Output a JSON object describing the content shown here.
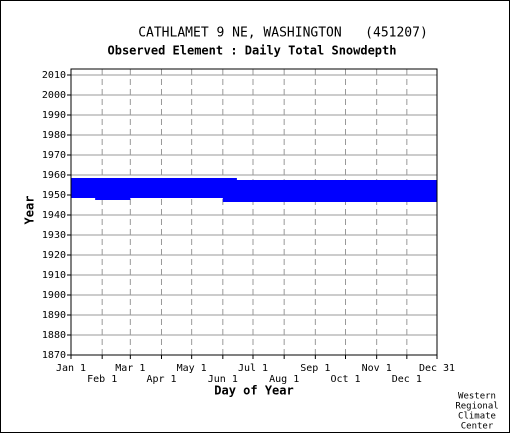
{
  "chart_data": {
    "type": "range",
    "title": "CATHLAMET 9 NE, WASHINGTON   (451207)",
    "subtitle": "Observed Element : Daily Total Snowdepth",
    "xlabel": "Day of Year",
    "ylabel": "Year",
    "credit": [
      "Western",
      "Regional",
      "Climate",
      "Center"
    ],
    "color": "#0000ff",
    "grid": true,
    "xlim": [
      1,
      365
    ],
    "ylim": [
      1870,
      2013
    ],
    "yticks": [
      1870,
      1880,
      1890,
      1900,
      1910,
      1920,
      1930,
      1940,
      1950,
      1960,
      1970,
      1980,
      1990,
      2000,
      2010
    ],
    "xticks": [
      {
        "value": 1,
        "label": "Jan 1"
      },
      {
        "value": 32,
        "label": "Feb 1"
      },
      {
        "value": 60,
        "label": "Mar 1"
      },
      {
        "value": 91,
        "label": "Apr 1"
      },
      {
        "value": 121,
        "label": "May 1"
      },
      {
        "value": 152,
        "label": "Jun 1"
      },
      {
        "value": 182,
        "label": "Jul 1"
      },
      {
        "value": 213,
        "label": "Aug 1"
      },
      {
        "value": 244,
        "label": "Sep 1"
      },
      {
        "value": 274,
        "label": "Oct 1"
      },
      {
        "value": 305,
        "label": "Nov 1"
      },
      {
        "value": 335,
        "label": "Dec 1"
      },
      {
        "value": 365,
        "label": "Dec 31"
      }
    ],
    "rows": [
      {
        "year": 1958,
        "start": 1,
        "end": 166
      },
      {
        "year": 1957,
        "start": 1,
        "end": 365
      },
      {
        "year": 1956,
        "start": 1,
        "end": 365
      },
      {
        "year": 1955,
        "start": 1,
        "end": 365
      },
      {
        "year": 1954,
        "start": 1,
        "end": 365
      },
      {
        "year": 1953,
        "start": 1,
        "end": 365
      },
      {
        "year": 1952,
        "start": 1,
        "end": 365
      },
      {
        "year": 1951,
        "start": 1,
        "end": 365
      },
      {
        "year": 1950,
        "start": 1,
        "end": 365
      },
      {
        "year": 1949,
        "start": 1,
        "end": 365
      },
      {
        "year": 1948,
        "start": 25,
        "end": 60
      },
      {
        "year": 1948,
        "start": 152,
        "end": 365
      },
      {
        "year": 1947,
        "start": 152,
        "end": 365
      }
    ]
  }
}
